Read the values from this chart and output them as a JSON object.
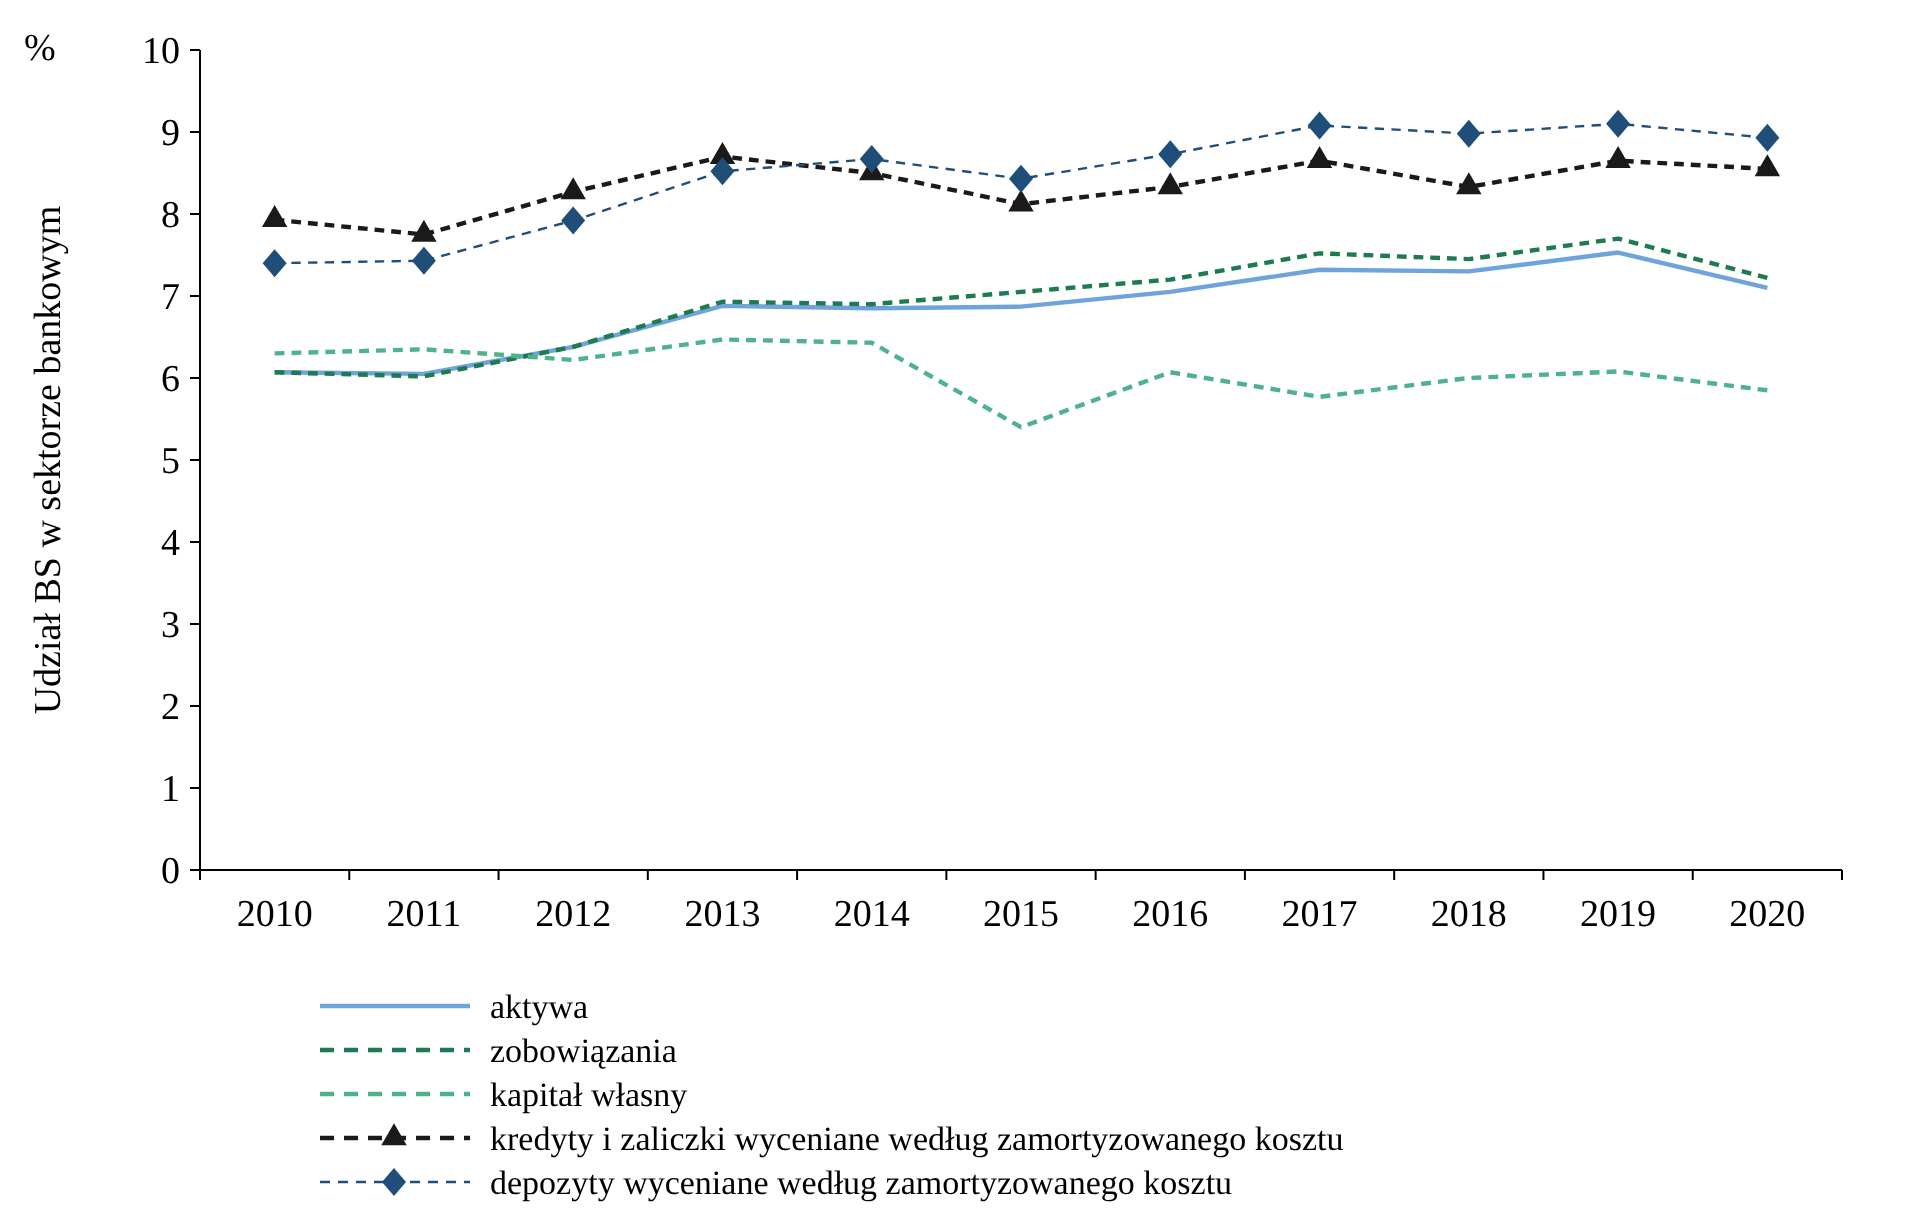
{
  "chart_data": {
    "type": "line",
    "ylabel": "Udział BS w sektorze bankowym",
    "annotations": [
      "%"
    ],
    "categories": [
      "2010",
      "2011",
      "2012",
      "2013",
      "2014",
      "2015",
      "2016",
      "2017",
      "2018",
      "2019",
      "2020"
    ],
    "ylim": [
      0,
      10
    ],
    "yticks": [
      0,
      1,
      2,
      3,
      4,
      5,
      6,
      7,
      8,
      9,
      10
    ],
    "grid": false,
    "legend": "bottom",
    "series": [
      {
        "name": "aktywa",
        "color": "#6fa3dc",
        "line_style": "solid",
        "marker": "none",
        "values": [
          6.07,
          6.05,
          6.38,
          6.88,
          6.85,
          6.87,
          7.05,
          7.32,
          7.3,
          7.53,
          7.1
        ]
      },
      {
        "name": "zobowiązania",
        "color": "#1e7a4f",
        "line_style": "dashed",
        "marker": "none",
        "values": [
          6.07,
          6.02,
          6.38,
          6.93,
          6.9,
          7.05,
          7.2,
          7.52,
          7.45,
          7.7,
          7.22
        ]
      },
      {
        "name": "kapitał własny",
        "color": "#4fb38a",
        "line_style": "dashed",
        "marker": "none",
        "values": [
          6.3,
          6.35,
          6.22,
          6.47,
          6.43,
          5.4,
          6.07,
          5.77,
          6.0,
          6.08,
          5.85
        ]
      },
      {
        "name": "kredyty i zaliczki wyceniane według zamortyzowanego kosztu",
        "color": "#1a1a1a",
        "line_style": "dashed",
        "marker": "triangle",
        "values": [
          7.93,
          7.75,
          8.27,
          8.7,
          8.5,
          8.12,
          8.33,
          8.65,
          8.33,
          8.65,
          8.55
        ]
      },
      {
        "name": "depozyty wyceniane według zamortyzowanego kosztu",
        "color": "#1f4e79",
        "line_style": "dashed",
        "marker": "diamond",
        "values": [
          7.4,
          7.43,
          7.92,
          8.52,
          8.67,
          8.43,
          8.73,
          9.08,
          8.98,
          9.1,
          8.93
        ]
      }
    ]
  }
}
